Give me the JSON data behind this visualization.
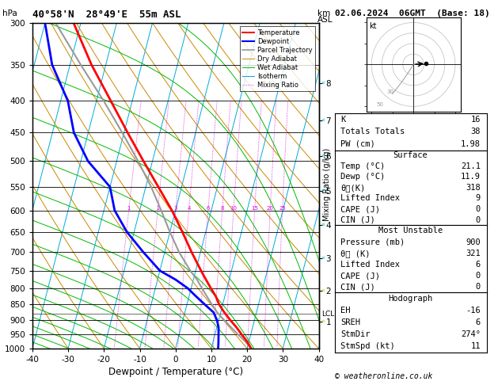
{
  "title_left": "40°58'N  28°49'E  55m ASL",
  "title_right": "02.06.2024  06GMT  (Base: 18)",
  "xlabel": "Dewpoint / Temperature (°C)",
  "pressure_levels": [
    300,
    350,
    400,
    450,
    500,
    550,
    600,
    650,
    700,
    750,
    800,
    850,
    900,
    950,
    1000
  ],
  "isotherm_color": "#00aadd",
  "dry_adiabat_color": "#cc8800",
  "wet_adiabat_color": "#00bb00",
  "mixing_ratio_color": "#dd00dd",
  "parcel_color": "#999999",
  "temp_profile_color": "#ff0000",
  "dewp_profile_color": "#0000ff",
  "skew_factor": 45,
  "km_ticks": [
    1,
    2,
    3,
    4,
    5,
    6,
    7,
    8
  ],
  "km_pressures": [
    905,
    808,
    717,
    634,
    559,
    491,
    430,
    375
  ],
  "mixing_ratios": [
    1,
    2,
    3,
    4,
    6,
    8,
    10,
    15,
    20,
    25
  ],
  "lcl_pressure": 880,
  "temp_profile_pressure": [
    1000,
    975,
    950,
    925,
    900,
    875,
    850,
    825,
    800,
    775,
    750,
    700,
    650,
    600,
    550,
    500,
    450,
    400,
    350,
    300
  ],
  "temp_profile_temp": [
    21.1,
    19.5,
    17.5,
    15.5,
    13.2,
    11.0,
    9.0,
    7.5,
    5.5,
    3.5,
    1.5,
    -2.5,
    -6.5,
    -11.0,
    -16.5,
    -22.5,
    -29.0,
    -36.0,
    -44.0,
    -52.0
  ],
  "dewp_profile_pressure": [
    1000,
    975,
    950,
    925,
    900,
    875,
    850,
    825,
    800,
    775,
    750,
    700,
    650,
    600,
    550,
    500,
    450,
    400,
    350,
    300
  ],
  "dewp_profile_temp": [
    11.9,
    11.5,
    11.0,
    10.5,
    9.5,
    8.0,
    5.0,
    2.0,
    -1.0,
    -5.0,
    -10.0,
    -16.0,
    -22.0,
    -27.0,
    -30.0,
    -38.0,
    -44.0,
    -48.0,
    -55.0,
    -60.0
  ],
  "parcel_profile_pressure": [
    1000,
    975,
    950,
    925,
    900,
    875,
    850,
    825,
    800,
    775,
    750,
    700,
    650,
    600,
    550,
    500,
    450,
    400,
    350,
    300
  ],
  "parcel_profile_temp": [
    21.1,
    19.0,
    16.5,
    14.0,
    11.5,
    9.0,
    7.0,
    5.0,
    3.0,
    1.0,
    -1.5,
    -6.0,
    -10.0,
    -14.0,
    -18.5,
    -24.0,
    -30.5,
    -38.0,
    -47.0,
    -57.0
  ],
  "info_K": 16,
  "info_TT": 38,
  "info_PW": 1.98,
  "info_surf_temp": 21.1,
  "info_surf_dewp": 11.9,
  "info_surf_theta": 318,
  "info_surf_li": 9,
  "info_surf_cape": 0,
  "info_surf_cin": 0,
  "info_mu_pressure": 900,
  "info_mu_theta": 321,
  "info_mu_li": 6,
  "info_mu_cape": 0,
  "info_mu_cin": 0,
  "info_EH": -16,
  "info_SREH": 6,
  "info_StmDir": 274,
  "info_StmSpd": 11,
  "copyright": "© weatheronline.co.uk"
}
